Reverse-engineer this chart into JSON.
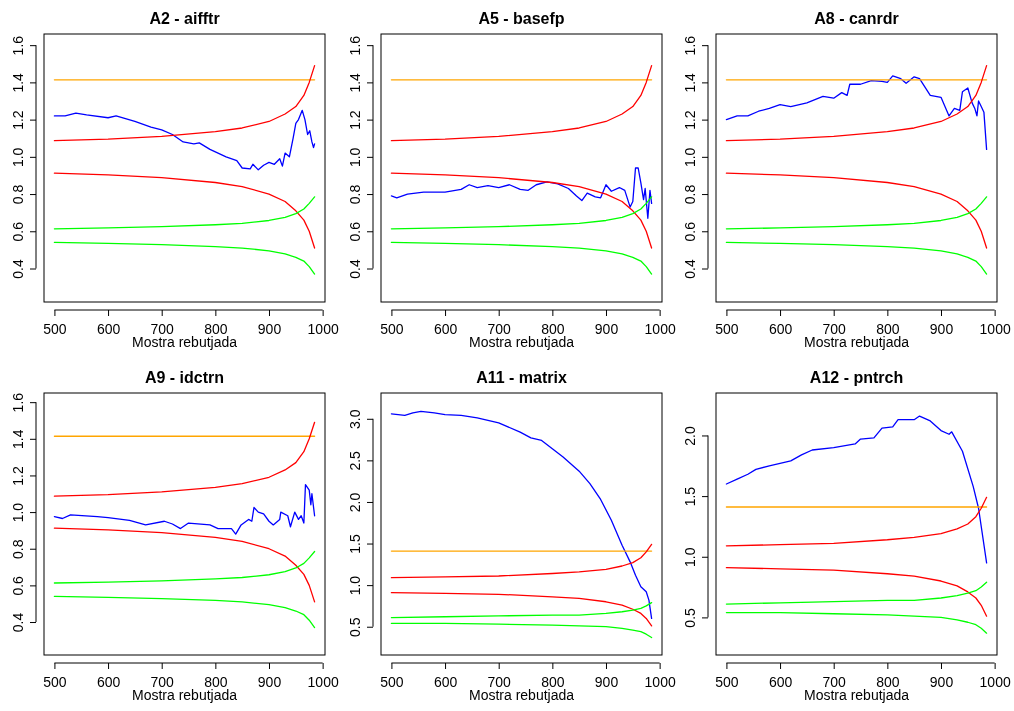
{
  "chart_data": [
    {
      "type": "line",
      "title": "A2 - aifftr",
      "xlabel": "Mostra rebutjada",
      "xlim": [
        480.6,
        1004.4
      ],
      "xticks": [
        500,
        600,
        700,
        800,
        900,
        1000
      ],
      "ylim": [
        0.22,
        1.66
      ],
      "yticks": [
        0.4,
        0.6,
        0.8,
        {
          "value": 1,
          "label": "1.0"
        },
        1.2,
        1.4,
        1.6
      ],
      "series": [
        {
          "color": "#0000ff",
          "x": [
            500,
            520,
            540,
            560,
            600,
            615,
            650,
            680,
            700,
            720,
            740,
            760,
            770,
            790,
            820,
            840,
            850,
            865,
            870,
            880,
            890,
            900,
            910,
            920,
            925,
            930,
            938,
            945,
            950,
            955,
            962,
            967,
            972,
            976,
            980,
            983,
            985
          ],
          "values": [
            1.22,
            1.22,
            1.235,
            1.225,
            1.21,
            1.22,
            1.19,
            1.16,
            1.145,
            1.12,
            1.08,
            1.07,
            1.075,
            1.04,
            1.0,
            0.98,
            0.94,
            0.935,
            0.96,
            0.93,
            0.955,
            0.97,
            0.96,
            0.99,
            0.95,
            1.02,
            1.0,
            1.1,
            1.18,
            1.2,
            1.25,
            1.2,
            1.12,
            1.14,
            1.08,
            1.05,
            1.07
          ]
        },
        {
          "color": "#ffa500",
          "x": [
            500,
            985
          ],
          "values": [
            1.414,
            1.414
          ]
        },
        {
          "color": "#ff0000",
          "x": [
            500,
            600,
            700,
            800,
            850,
            900,
            930,
            950,
            965,
            975,
            985
          ],
          "values": [
            1.087,
            1.095,
            1.11,
            1.135,
            1.155,
            1.19,
            1.23,
            1.27,
            1.33,
            1.4,
            1.49
          ]
        },
        {
          "color": "#ff0000",
          "x": [
            500,
            600,
            700,
            800,
            850,
            900,
            930,
            950,
            965,
            975,
            985
          ],
          "values": [
            0.912,
            0.903,
            0.888,
            0.862,
            0.84,
            0.8,
            0.76,
            0.71,
            0.66,
            0.6,
            0.51
          ]
        },
        {
          "color": "#00ff00",
          "x": [
            500,
            600,
            700,
            800,
            850,
            900,
            930,
            950,
            965,
            975,
            985
          ],
          "values": [
            0.613,
            0.618,
            0.625,
            0.635,
            0.643,
            0.658,
            0.675,
            0.695,
            0.72,
            0.75,
            0.785
          ]
        },
        {
          "color": "#00ff00",
          "x": [
            500,
            600,
            700,
            800,
            850,
            900,
            930,
            950,
            965,
            975,
            985
          ],
          "values": [
            0.54,
            0.535,
            0.528,
            0.518,
            0.51,
            0.495,
            0.478,
            0.46,
            0.44,
            0.41,
            0.37
          ]
        }
      ]
    },
    {
      "type": "line",
      "title": "A5 - basefp",
      "xlabel": "Mostra rebutjada",
      "xlim": [
        480.6,
        1004.4
      ],
      "xticks": [
        500,
        600,
        700,
        800,
        900,
        1000
      ],
      "ylim": [
        0.22,
        1.66
      ],
      "yticks": [
        0.4,
        0.6,
        0.8,
        {
          "value": 1,
          "label": "1.0"
        },
        1.2,
        1.4,
        1.6
      ],
      "series": [
        {
          "color": "#0000ff",
          "x": [
            500,
            510,
            530,
            560,
            600,
            630,
            645,
            660,
            680,
            700,
            720,
            740,
            755,
            770,
            790,
            810,
            830,
            845,
            855,
            865,
            880,
            890,
            900,
            910,
            925,
            935,
            945,
            950,
            955,
            960,
            965,
            970,
            973,
            978,
            982,
            985
          ],
          "values": [
            0.79,
            0.78,
            0.8,
            0.81,
            0.81,
            0.825,
            0.85,
            0.835,
            0.845,
            0.835,
            0.85,
            0.825,
            0.82,
            0.85,
            0.865,
            0.855,
            0.83,
            0.79,
            0.765,
            0.805,
            0.785,
            0.78,
            0.85,
            0.815,
            0.835,
            0.82,
            0.73,
            0.76,
            0.94,
            0.94,
            0.86,
            0.77,
            0.83,
            0.67,
            0.82,
            0.75
          ]
        },
        {
          "color": "#ffa500",
          "x": [
            500,
            985
          ],
          "values": [
            1.414,
            1.414
          ]
        },
        {
          "color": "#ff0000",
          "x": [
            500,
            600,
            700,
            800,
            850,
            900,
            930,
            950,
            965,
            975,
            985
          ],
          "values": [
            1.087,
            1.095,
            1.11,
            1.135,
            1.155,
            1.19,
            1.23,
            1.27,
            1.33,
            1.4,
            1.49
          ]
        },
        {
          "color": "#ff0000",
          "x": [
            500,
            600,
            700,
            800,
            850,
            900,
            930,
            950,
            965,
            975,
            985
          ],
          "values": [
            0.912,
            0.903,
            0.888,
            0.862,
            0.84,
            0.8,
            0.76,
            0.71,
            0.66,
            0.6,
            0.51
          ]
        },
        {
          "color": "#00ff00",
          "x": [
            500,
            600,
            700,
            800,
            850,
            900,
            930,
            950,
            965,
            975,
            985
          ],
          "values": [
            0.613,
            0.618,
            0.625,
            0.635,
            0.643,
            0.658,
            0.675,
            0.695,
            0.72,
            0.75,
            0.785
          ]
        },
        {
          "color": "#00ff00",
          "x": [
            500,
            600,
            700,
            800,
            850,
            900,
            930,
            950,
            965,
            975,
            985
          ],
          "values": [
            0.54,
            0.535,
            0.528,
            0.518,
            0.51,
            0.495,
            0.478,
            0.46,
            0.44,
            0.41,
            0.37
          ]
        }
      ]
    },
    {
      "type": "line",
      "title": "A8 - canrdr",
      "xlabel": "Mostra rebutjada",
      "xlim": [
        480.6,
        1004.4
      ],
      "xticks": [
        500,
        600,
        700,
        800,
        900,
        1000
      ],
      "ylim": [
        0.22,
        1.66
      ],
      "yticks": [
        0.4,
        0.6,
        0.8,
        {
          "value": 1,
          "label": "1.0"
        },
        1.2,
        1.4,
        1.6
      ],
      "series": [
        {
          "color": "#0000ff",
          "x": [
            500,
            520,
            540,
            560,
            580,
            600,
            620,
            650,
            680,
            700,
            715,
            725,
            730,
            750,
            770,
            790,
            800,
            810,
            825,
            835,
            850,
            860,
            880,
            900,
            915,
            925,
            935,
            940,
            950,
            958,
            963,
            967,
            970,
            975,
            980,
            985
          ],
          "values": [
            1.2,
            1.22,
            1.22,
            1.245,
            1.26,
            1.28,
            1.27,
            1.29,
            1.325,
            1.315,
            1.345,
            1.33,
            1.39,
            1.39,
            1.41,
            1.405,
            1.4,
            1.435,
            1.42,
            1.395,
            1.43,
            1.42,
            1.33,
            1.32,
            1.22,
            1.26,
            1.25,
            1.35,
            1.37,
            1.29,
            1.26,
            1.22,
            1.3,
            1.27,
            1.24,
            1.04
          ]
        },
        {
          "color": "#ffa500",
          "x": [
            500,
            985
          ],
          "values": [
            1.414,
            1.414
          ]
        },
        {
          "color": "#ff0000",
          "x": [
            500,
            600,
            700,
            800,
            850,
            900,
            930,
            950,
            965,
            975,
            985
          ],
          "values": [
            1.087,
            1.095,
            1.11,
            1.135,
            1.155,
            1.19,
            1.23,
            1.27,
            1.33,
            1.4,
            1.49
          ]
        },
        {
          "color": "#ff0000",
          "x": [
            500,
            600,
            700,
            800,
            850,
            900,
            930,
            950,
            965,
            975,
            985
          ],
          "values": [
            0.912,
            0.903,
            0.888,
            0.862,
            0.84,
            0.8,
            0.76,
            0.71,
            0.66,
            0.6,
            0.51
          ]
        },
        {
          "color": "#00ff00",
          "x": [
            500,
            600,
            700,
            800,
            850,
            900,
            930,
            950,
            965,
            975,
            985
          ],
          "values": [
            0.613,
            0.618,
            0.625,
            0.635,
            0.643,
            0.658,
            0.675,
            0.695,
            0.72,
            0.75,
            0.785
          ]
        },
        {
          "color": "#00ff00",
          "x": [
            500,
            600,
            700,
            800,
            850,
            900,
            930,
            950,
            965,
            975,
            985
          ],
          "values": [
            0.54,
            0.535,
            0.528,
            0.518,
            0.51,
            0.495,
            0.478,
            0.46,
            0.44,
            0.41,
            0.37
          ]
        }
      ]
    },
    {
      "type": "line",
      "title": "A9 - idctrn",
      "xlabel": "Mostra rebutjada",
      "xlim": [
        480.6,
        1004.4
      ],
      "xticks": [
        500,
        600,
        700,
        800,
        900,
        1000
      ],
      "ylim": [
        0.22,
        1.65
      ],
      "yticks": [
        0.4,
        0.6,
        0.8,
        {
          "value": 1,
          "label": "1.0"
        },
        1.2,
        1.4,
        1.6
      ],
      "series": [
        {
          "color": "#0000ff",
          "x": [
            500,
            515,
            530,
            580,
            600,
            640,
            670,
            705,
            720,
            735,
            750,
            790,
            805,
            830,
            838,
            848,
            862,
            868,
            872,
            880,
            890,
            900,
            908,
            920,
            922,
            935,
            940,
            948,
            955,
            960,
            965,
            968,
            975,
            978,
            980,
            985
          ],
          "values": [
            0.975,
            0.965,
            0.985,
            0.975,
            0.97,
            0.955,
            0.93,
            0.95,
            0.935,
            0.91,
            0.94,
            0.93,
            0.91,
            0.91,
            0.88,
            0.93,
            0.96,
            0.95,
            1.025,
            1.0,
            0.99,
            0.95,
            0.93,
            0.96,
            1.0,
            0.98,
            0.92,
            1.0,
            0.96,
            0.98,
            0.94,
            1.15,
            1.12,
            1.04,
            1.1,
            0.98
          ]
        },
        {
          "color": "#ffa500",
          "x": [
            500,
            985
          ],
          "values": [
            1.414,
            1.414
          ]
        },
        {
          "color": "#ff0000",
          "x": [
            500,
            600,
            700,
            800,
            850,
            900,
            930,
            950,
            965,
            975,
            985
          ],
          "values": [
            1.087,
            1.095,
            1.11,
            1.135,
            1.155,
            1.19,
            1.23,
            1.27,
            1.33,
            1.4,
            1.49
          ]
        },
        {
          "color": "#ff0000",
          "x": [
            500,
            600,
            700,
            800,
            850,
            900,
            930,
            950,
            965,
            975,
            985
          ],
          "values": [
            0.912,
            0.903,
            0.888,
            0.862,
            0.84,
            0.8,
            0.76,
            0.71,
            0.66,
            0.6,
            0.51
          ]
        },
        {
          "color": "#00ff00",
          "x": [
            500,
            600,
            700,
            800,
            850,
            900,
            930,
            950,
            965,
            975,
            985
          ],
          "values": [
            0.613,
            0.618,
            0.625,
            0.635,
            0.643,
            0.658,
            0.675,
            0.695,
            0.72,
            0.75,
            0.785
          ]
        },
        {
          "color": "#00ff00",
          "x": [
            500,
            600,
            700,
            800,
            850,
            900,
            930,
            950,
            965,
            975,
            985
          ],
          "values": [
            0.54,
            0.535,
            0.528,
            0.518,
            0.51,
            0.495,
            0.478,
            0.46,
            0.44,
            0.41,
            0.37
          ]
        }
      ]
    },
    {
      "type": "line",
      "title": "A11 - matrix",
      "xlabel": "Mostra rebutjada",
      "xlim": [
        480.6,
        1004.4
      ],
      "xticks": [
        500,
        600,
        700,
        800,
        900,
        1000
      ],
      "ylim": [
        0.16,
        3.31
      ],
      "yticks": [
        0.5,
        {
          "value": 1,
          "label": "1.0"
        },
        1.5,
        {
          "value": 2,
          "label": "2.0"
        },
        2.5,
        {
          "value": 3,
          "label": "3.0"
        }
      ],
      "series": [
        {
          "color": "#0000ff",
          "x": [
            500,
            525,
            540,
            555,
            580,
            600,
            630,
            660,
            700,
            740,
            760,
            780,
            800,
            820,
            850,
            870,
            890,
            910,
            930,
            945,
            955,
            965,
            975,
            980,
            985
          ],
          "values": [
            3.06,
            3.04,
            3.07,
            3.09,
            3.07,
            3.05,
            3.04,
            3.01,
            2.95,
            2.84,
            2.77,
            2.74,
            2.64,
            2.54,
            2.37,
            2.22,
            2.03,
            1.78,
            1.48,
            1.28,
            1.12,
            0.98,
            0.92,
            0.82,
            0.6
          ]
        },
        {
          "color": "#ffa500",
          "x": [
            500,
            985
          ],
          "values": [
            1.41,
            1.41
          ]
        },
        {
          "color": "#ff0000",
          "x": [
            500,
            600,
            700,
            800,
            850,
            900,
            930,
            950,
            965,
            975,
            985
          ],
          "values": [
            1.09,
            1.1,
            1.11,
            1.14,
            1.16,
            1.19,
            1.23,
            1.27,
            1.33,
            1.4,
            1.49
          ]
        },
        {
          "color": "#ff0000",
          "x": [
            500,
            600,
            700,
            800,
            850,
            900,
            930,
            950,
            965,
            975,
            985
          ],
          "values": [
            0.91,
            0.9,
            0.89,
            0.86,
            0.84,
            0.8,
            0.76,
            0.71,
            0.66,
            0.6,
            0.51
          ]
        },
        {
          "color": "#00ff00",
          "x": [
            500,
            600,
            700,
            800,
            850,
            900,
            930,
            950,
            965,
            975,
            985
          ],
          "values": [
            0.61,
            0.62,
            0.63,
            0.64,
            0.64,
            0.66,
            0.68,
            0.7,
            0.72,
            0.75,
            0.79
          ]
        },
        {
          "color": "#00ff00",
          "x": [
            500,
            600,
            700,
            800,
            850,
            900,
            930,
            950,
            965,
            975,
            985
          ],
          "values": [
            0.54,
            0.54,
            0.53,
            0.52,
            0.51,
            0.5,
            0.48,
            0.46,
            0.44,
            0.41,
            0.37
          ]
        }
      ]
    },
    {
      "type": "line",
      "title": "A12 - pntrch",
      "xlabel": "Mostra rebutjada",
      "xlim": [
        480.6,
        1004.4
      ],
      "xticks": [
        500,
        600,
        700,
        800,
        900,
        1000
      ],
      "ylim": [
        0.19,
        2.35
      ],
      "yticks": [
        0.5,
        {
          "value": 1,
          "label": "1.0"
        },
        1.5,
        {
          "value": 2,
          "label": "2.0"
        }
      ],
      "series": [
        {
          "color": "#0000ff",
          "x": [
            500,
            520,
            540,
            555,
            580,
            620,
            640,
            660,
            700,
            740,
            750,
            775,
            790,
            810,
            820,
            850,
            860,
            880,
            900,
            915,
            920,
            940,
            960,
            970,
            985
          ],
          "values": [
            1.6,
            1.64,
            1.68,
            1.72,
            1.75,
            1.79,
            1.84,
            1.88,
            1.9,
            1.93,
            1.97,
            1.98,
            2.06,
            2.07,
            2.13,
            2.13,
            2.16,
            2.12,
            2.04,
            2.01,
            2.03,
            1.87,
            1.58,
            1.4,
            0.95
          ]
        },
        {
          "color": "#ffa500",
          "x": [
            500,
            985
          ],
          "values": [
            1.41,
            1.41
          ]
        },
        {
          "color": "#ff0000",
          "x": [
            500,
            600,
            700,
            800,
            850,
            900,
            930,
            950,
            965,
            975,
            985
          ],
          "values": [
            1.09,
            1.1,
            1.11,
            1.14,
            1.16,
            1.19,
            1.23,
            1.27,
            1.33,
            1.4,
            1.49
          ]
        },
        {
          "color": "#ff0000",
          "x": [
            500,
            600,
            700,
            800,
            850,
            900,
            930,
            950,
            965,
            975,
            985
          ],
          "values": [
            0.91,
            0.9,
            0.89,
            0.86,
            0.84,
            0.8,
            0.76,
            0.71,
            0.66,
            0.6,
            0.51
          ]
        },
        {
          "color": "#00ff00",
          "x": [
            500,
            600,
            700,
            800,
            850,
            900,
            930,
            950,
            965,
            975,
            985
          ],
          "values": [
            0.61,
            0.62,
            0.63,
            0.64,
            0.64,
            0.66,
            0.68,
            0.7,
            0.72,
            0.75,
            0.79
          ]
        },
        {
          "color": "#00ff00",
          "x": [
            500,
            600,
            700,
            800,
            850,
            900,
            930,
            950,
            965,
            975,
            985
          ],
          "values": [
            0.54,
            0.54,
            0.53,
            0.52,
            0.51,
            0.5,
            0.48,
            0.46,
            0.44,
            0.41,
            0.37
          ]
        }
      ]
    }
  ]
}
